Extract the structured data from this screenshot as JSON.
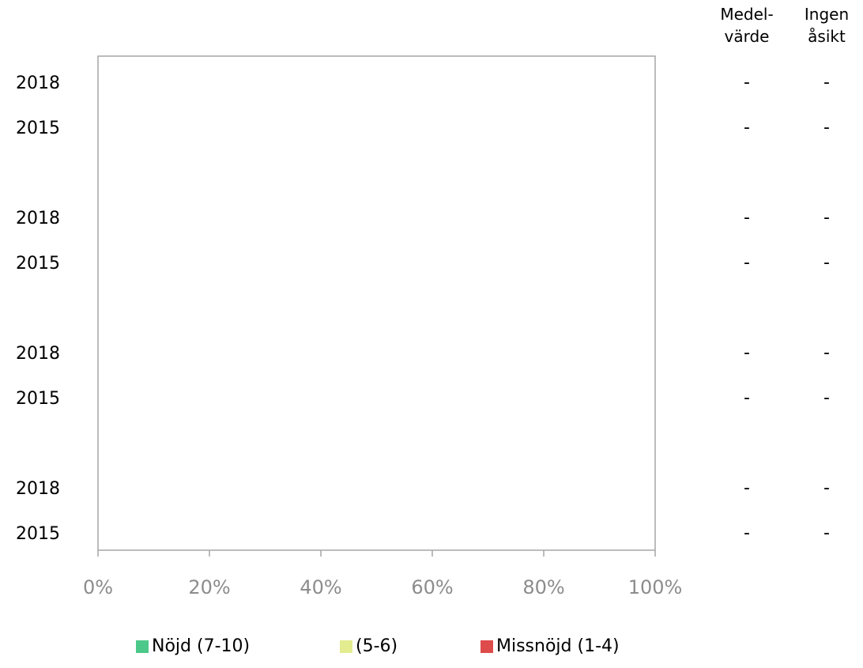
{
  "chart_data": {
    "type": "bar",
    "orientation": "horizontal",
    "stacked": true,
    "categories": [
      "2018",
      "2015",
      "2018",
      "2015",
      "2018",
      "2015",
      "2018",
      "2015"
    ],
    "series": [
      {
        "name": "Nöjd (7-10)",
        "values": [
          null,
          null,
          null,
          null,
          null,
          null,
          null,
          null
        ]
      },
      {
        "name": "(5-6)",
        "values": [
          null,
          null,
          null,
          null,
          null,
          null,
          null,
          null
        ]
      },
      {
        "name": "Missnöjd (1-4)",
        "values": [
          null,
          null,
          null,
          null,
          null,
          null,
          null,
          null
        ]
      }
    ],
    "xlim": [
      0,
      100
    ],
    "x_ticks": [
      "0%",
      "20%",
      "40%",
      "60%",
      "80%",
      "100%"
    ],
    "grid": false,
    "legend": "bottom",
    "columns": {
      "medelvarde_header": [
        "Medel-",
        "värde"
      ],
      "ingen_asikt_header": [
        "Ingen",
        "åsikt"
      ],
      "medelvarde": [
        "-",
        "-",
        "-",
        "-",
        "-",
        "-",
        "-",
        "-"
      ],
      "ingen_asikt": [
        "-",
        "-",
        "-",
        "-",
        "-",
        "-",
        "-",
        "-"
      ]
    }
  },
  "colors": {
    "nojd": "#4cc88a",
    "neutral": "#e3ec8f",
    "missnojd": "#de4b4b",
    "axis": "#a6a6a6",
    "tick_label": "#8c8c8c"
  }
}
